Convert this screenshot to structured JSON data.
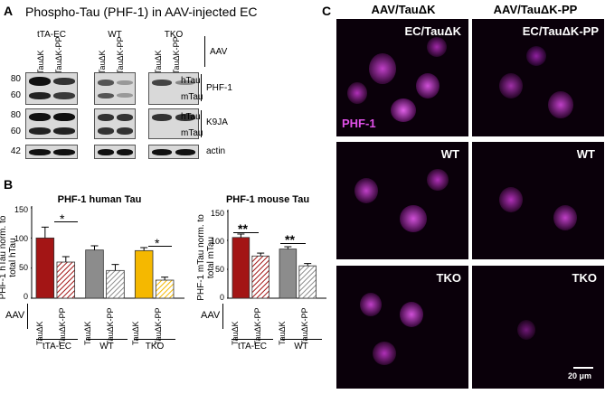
{
  "panel_a": {
    "letter": "A",
    "title": "Phospho-Tau (PHF-1) in AAV-injected EC",
    "groups": [
      "tTA-EC",
      "WT",
      "TKO"
    ],
    "lanes": [
      "TauΔK",
      "TauΔK-PP"
    ],
    "aav_label": "AAV",
    "mw_phf1": [
      "80",
      "60"
    ],
    "mw_k9ja": [
      "80",
      "60"
    ],
    "mw_actin": "42",
    "band_h": "hTau",
    "band_m": "mTau",
    "blot_phf1": "PHF-1",
    "blot_k9ja": "K9JA",
    "blot_actin": "actin"
  },
  "panel_b": {
    "letter": "B",
    "aav_label": "AAV",
    "significance": [
      "*",
      "*",
      "**",
      "**"
    ]
  },
  "panel_c": {
    "letter": "C",
    "col1": "AAV/TauΔK",
    "col2": "AAV/TauΔK-PP",
    "ec_dk": "EC/TauΔK",
    "ec_dkpp": "EC/TauΔK-PP",
    "phf1": "PHF-1",
    "wt": "WT",
    "tko": "TKO",
    "scale": "20 μm"
  },
  "chart_data": [
    {
      "type": "bar",
      "title": "PHF-1 human Tau",
      "ylabel": "PHF-1 hTau norm. to total hTau",
      "ylim": [
        0,
        150
      ],
      "yticks": [
        "0",
        "50",
        "100",
        "150"
      ],
      "categories": [
        "TauΔK",
        "TauΔK-PP",
        "TauΔK",
        "TauΔK-PP",
        "TauΔK",
        "TauΔK-PP"
      ],
      "groups": [
        "tTA-EC",
        "WT",
        "TKO"
      ],
      "values": [
        100,
        60,
        80,
        46,
        79,
        30
      ],
      "errors": [
        18,
        9,
        7,
        10,
        5,
        5
      ],
      "colors": [
        "#a31515",
        "#a31515",
        "#8c8c8c",
        "#8c8c8c",
        "#f5b800",
        "#f5b800"
      ],
      "hatched": [
        false,
        true,
        false,
        true,
        false,
        true
      ]
    },
    {
      "type": "bar",
      "title": "PHF-1 mouse Tau",
      "ylabel": "PHF-1 mTau norm. to total mTau",
      "ylim": [
        0,
        150
      ],
      "yticks": [
        "0",
        "50",
        "100",
        "150"
      ],
      "categories": [
        "TauΔK",
        "TauΔK-PP",
        "TauΔK",
        "TauΔK-PP"
      ],
      "groups": [
        "tTA-EC",
        "WT"
      ],
      "values": [
        105,
        73,
        85,
        56
      ],
      "errors": [
        6,
        5,
        4,
        4
      ],
      "colors": [
        "#a31515",
        "#a31515",
        "#8c8c8c",
        "#8c8c8c"
      ],
      "hatched": [
        false,
        true,
        false,
        true
      ]
    }
  ]
}
